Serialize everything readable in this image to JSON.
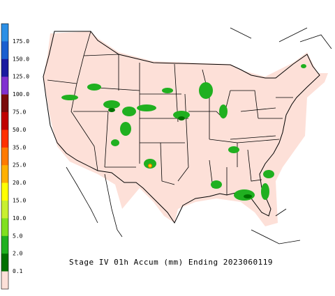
{
  "title": "Stage IV 01h Accum (mm) Ending 2023060119",
  "legend": {
    "labels": [
      "175.0",
      "150.0",
      "125.0",
      "100.0",
      "75.0",
      "50.0",
      "35.0",
      "25.0",
      "20.0",
      "15.0",
      "10.0",
      "5.0",
      "2.0",
      "0.1"
    ],
    "colors": [
      "#2b8fe6",
      "#1a5fd0",
      "#1a1aa0",
      "#8030d0",
      "#7a0a0a",
      "#c00000",
      "#ff3000",
      "#ff7a00",
      "#ffb000",
      "#ffff00",
      "#c8f030",
      "#80e020",
      "#20b020",
      "#007000",
      "#fde0d8"
    ]
  }
}
